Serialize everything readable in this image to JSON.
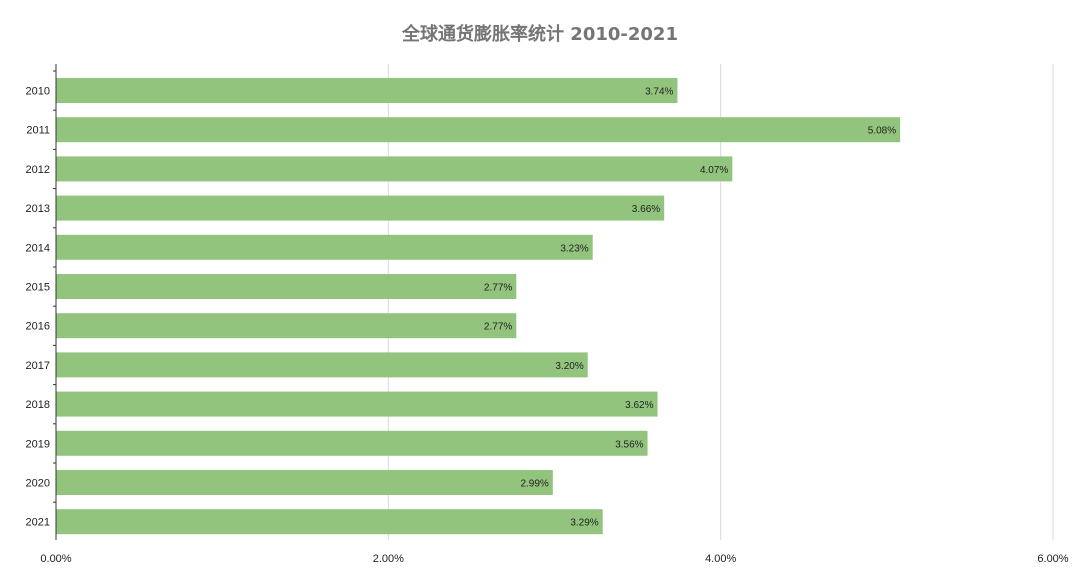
{
  "chart_data": {
    "type": "bar",
    "orientation": "horizontal",
    "title": "全球通货膨胀率统计 2010-2021",
    "xlabel": "",
    "ylabel": "",
    "categories": [
      "2010",
      "2011",
      "2012",
      "2013",
      "2014",
      "2015",
      "2016",
      "2017",
      "2018",
      "2019",
      "2020",
      "2021"
    ],
    "values": [
      3.74,
      5.08,
      4.07,
      3.66,
      3.23,
      2.77,
      2.77,
      3.2,
      3.62,
      3.56,
      2.99,
      3.29
    ],
    "value_labels": [
      "3.74%",
      "5.08%",
      "4.07%",
      "3.66%",
      "3.23%",
      "2.77%",
      "2.77%",
      "3.20%",
      "3.62%",
      "3.56%",
      "2.99%",
      "3.29%"
    ],
    "xlim": [
      0,
      6
    ],
    "x_ticks": [
      0,
      2,
      4,
      6
    ],
    "x_tick_labels": [
      "0.00%",
      "2.00%",
      "4.00%",
      "6.00%"
    ],
    "grid": "vertical",
    "legend": "none",
    "colors": {
      "bar": "#93c47d",
      "grid": "#d9d9d9",
      "axis": "#333333",
      "title": "#757575",
      "text": "#222222"
    }
  }
}
